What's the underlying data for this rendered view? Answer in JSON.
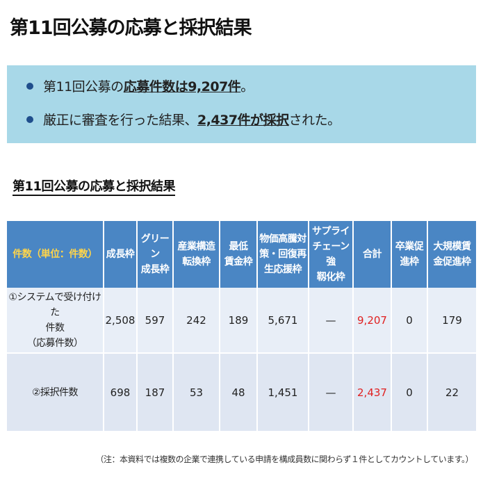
{
  "title": "第11回公募の応募と採択結果",
  "summary": {
    "line1": {
      "pre": "第11回公募の",
      "emph": "応募件数は9,207件",
      "post": "。"
    },
    "line2": {
      "pre": "厳正に審査を行った結果、",
      "emph": "2,437件が採択",
      "post": "された。"
    }
  },
  "section_title": "第11回公募の応募と採択結果",
  "table": {
    "corner": "件数（単位：件数）",
    "headers": [
      "成長枠",
      "グリーン\n成長枠",
      "産業構造\n転換枠",
      "最低\n賃金枠",
      "物価高騰対\n策・回復再\n生応援枠",
      "サプライ\nチェーン強\n靱化枠",
      "合計",
      "卒業促\n進枠",
      "大規模賃\n金促進枠"
    ],
    "rows": [
      {
        "label": "①システムで受け付けた\n件数\n（応募件数）",
        "values": [
          "2,508",
          "597",
          "242",
          "189",
          "5,671",
          "—",
          "9,207",
          "0",
          "179"
        ]
      },
      {
        "label": "②採択件数",
        "values": [
          "698",
          "187",
          "53",
          "48",
          "1,451",
          "—",
          "2,437",
          "0",
          "22"
        ]
      }
    ]
  },
  "note": "（注：本資料では複数の企業で連携している申請を構成員数に関わらず１件としてカウントしています。）",
  "colors": {
    "summary_bg": "#a8d8e8",
    "header_bg": "#4a86c4",
    "corner_text": "#ffd54a",
    "total_text": "#e02020"
  }
}
